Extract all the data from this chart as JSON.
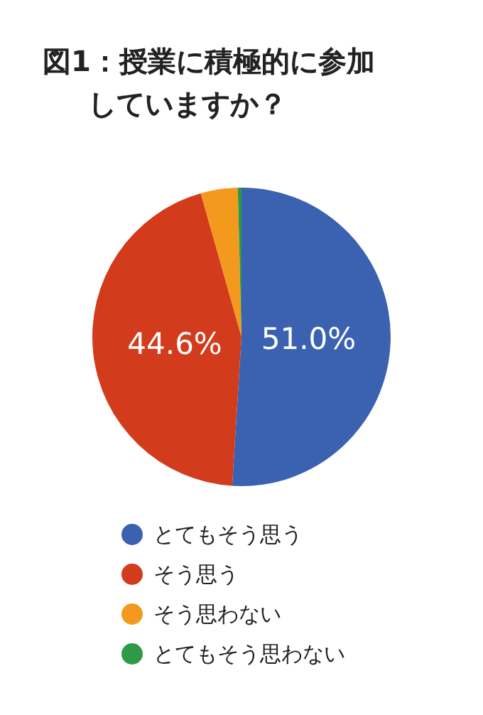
{
  "chart_data": {
    "type": "pie",
    "title": "図1：授業に積極的に参加していますか？",
    "categories": [
      "とてもそう思う",
      "そう思う",
      "そう思わない",
      "とてもそう思わない"
    ],
    "values": [
      51.0,
      44.6,
      4.0,
      0.4
    ],
    "colors": [
      "#3a62b0",
      "#d23c1c",
      "#f39a1e",
      "#2f9a46"
    ],
    "value_labels": [
      "51.0%",
      "44.6%",
      null,
      null
    ],
    "legend": "bottom"
  }
}
